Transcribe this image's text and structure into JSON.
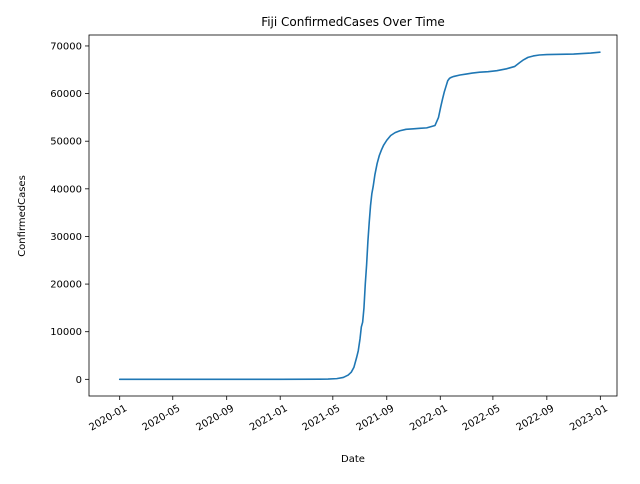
{
  "chart_data": {
    "type": "line",
    "title": "Fiji  ConfirmedCases Over Time",
    "xlabel": "Date",
    "ylabel": "ConfirmedCases",
    "xlim": [
      "2019-10-23",
      "2023-02-08"
    ],
    "ylim": [
      -3500,
      72300
    ],
    "grid": false,
    "legend": "none",
    "line_color": "#1f77b4",
    "xticks": [
      {
        "date": "2020-01-01",
        "label": "2020-01"
      },
      {
        "date": "2020-05-01",
        "label": "2020-05"
      },
      {
        "date": "2020-09-01",
        "label": "2020-09"
      },
      {
        "date": "2021-01-01",
        "label": "2021-01"
      },
      {
        "date": "2021-05-01",
        "label": "2021-05"
      },
      {
        "date": "2021-09-01",
        "label": "2021-09"
      },
      {
        "date": "2022-01-01",
        "label": "2022-01"
      },
      {
        "date": "2022-05-01",
        "label": "2022-05"
      },
      {
        "date": "2022-09-01",
        "label": "2022-09"
      },
      {
        "date": "2023-01-01",
        "label": "2023-01"
      }
    ],
    "yticks": [
      {
        "value": 0,
        "label": "0"
      },
      {
        "value": 10000,
        "label": "10000"
      },
      {
        "value": 20000,
        "label": "20000"
      },
      {
        "value": 30000,
        "label": "30000"
      },
      {
        "value": 40000,
        "label": "40000"
      },
      {
        "value": 50000,
        "label": "50000"
      },
      {
        "value": 60000,
        "label": "60000"
      },
      {
        "value": 70000,
        "label": "70000"
      }
    ],
    "series": [
      {
        "x": [
          "2020-01-01",
          "2020-06-01",
          "2021-01-01",
          "2021-04-01",
          "2021-04-20",
          "2021-05-10",
          "2021-05-25",
          "2021-06-05",
          "2021-06-12",
          "2021-06-18",
          "2021-06-24",
          "2021-06-28",
          "2021-07-02",
          "2021-07-05",
          "2021-07-08",
          "2021-07-11",
          "2021-07-14",
          "2021-07-17",
          "2021-07-20",
          "2021-07-23",
          "2021-07-26",
          "2021-07-29",
          "2021-08-01",
          "2021-08-05",
          "2021-08-10",
          "2021-08-15",
          "2021-08-20",
          "2021-08-25",
          "2021-09-01",
          "2021-09-10",
          "2021-09-20",
          "2021-10-01",
          "2021-10-15",
          "2021-11-01",
          "2021-11-15",
          "2021-12-01",
          "2021-12-20",
          "2021-12-28",
          "2022-01-02",
          "2022-01-06",
          "2022-01-10",
          "2022-01-14",
          "2022-01-18",
          "2022-01-22",
          "2022-01-26",
          "2022-02-01",
          "2022-02-15",
          "2022-03-01",
          "2022-03-15",
          "2022-04-01",
          "2022-04-20",
          "2022-05-10",
          "2022-06-01",
          "2022-06-20",
          "2022-07-01",
          "2022-07-10",
          "2022-07-20",
          "2022-08-01",
          "2022-08-15",
          "2022-09-01",
          "2022-10-01",
          "2022-11-01",
          "2022-11-20",
          "2022-12-10",
          "2022-12-31"
        ],
        "y": [
          0,
          0,
          1,
          30,
          60,
          150,
          400,
          900,
          1500,
          2500,
          4500,
          6000,
          8500,
          11000,
          12000,
          15000,
          20000,
          24000,
          29000,
          33000,
          36500,
          39000,
          40500,
          43000,
          45300,
          47000,
          48200,
          49200,
          50200,
          51200,
          51800,
          52200,
          52500,
          52600,
          52700,
          52800,
          53300,
          55000,
          57200,
          58800,
          60300,
          61500,
          62700,
          63200,
          63400,
          63600,
          63900,
          64100,
          64300,
          64500,
          64600,
          64800,
          65200,
          65700,
          66500,
          67100,
          67600,
          67900,
          68100,
          68200,
          68250,
          68300,
          68400,
          68500,
          68700
        ]
      }
    ]
  }
}
